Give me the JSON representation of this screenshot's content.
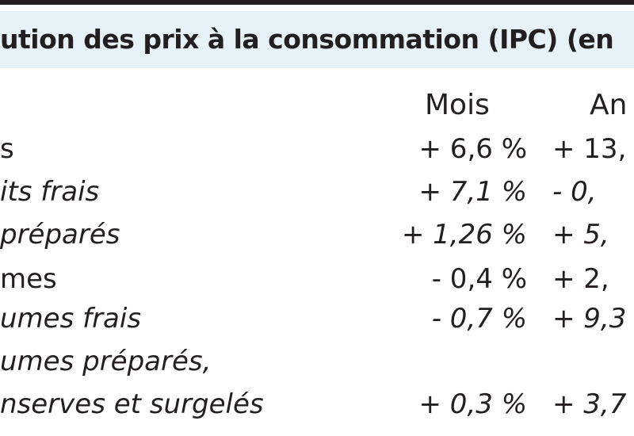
{
  "title": "ution des prix à la consommation (IPC) (en",
  "columns": {
    "month": "Mois",
    "year": "An"
  },
  "rows": [
    {
      "label": "s",
      "month": "+ 6,6 %",
      "year": "+ 13,",
      "italic": false
    },
    {
      "label": "its frais",
      "month": "+ 7,1 %",
      "year": "- 0,",
      "italic": true
    },
    {
      "label": " préparés",
      "month": "+ 1,26 %",
      "year": "+ 5,",
      "italic": true
    },
    {
      "label": "mes",
      "month": "- 0,4 %",
      "year": "+ 2,",
      "italic": false
    },
    {
      "label": "umes frais",
      "month": "- 0,7 %",
      "year": "+ 9,3",
      "italic": true
    },
    {
      "label": "umes préparés,",
      "month": "",
      "year": "",
      "italic": true
    },
    {
      "label": "nserves et surgelés",
      "month": "+ 0,3 %",
      "year": "+ 3,7",
      "italic": true
    }
  ]
}
